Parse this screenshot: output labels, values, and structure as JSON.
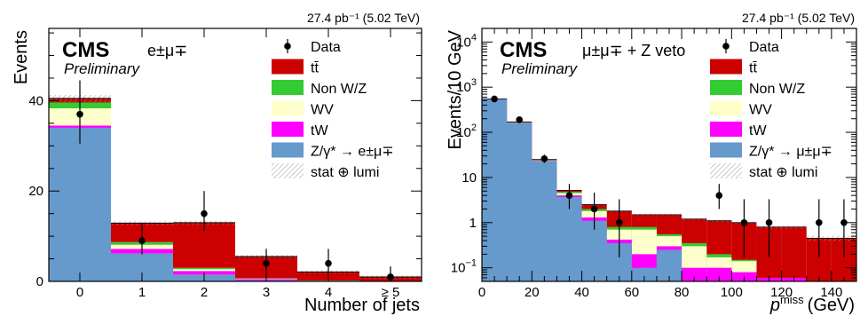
{
  "colors": {
    "ttbar": "#cc0000",
    "nonwz": "#33cc33",
    "wv": "#ffffcc",
    "tw": "#ff00ff",
    "dy": "#6699cc",
    "data": "#000000",
    "unc": "#999999"
  },
  "legend_labels": {
    "data": "Data",
    "ttbar": "tt̄",
    "nonwz": "Non W/Z",
    "wv": "WV",
    "tw": "tW",
    "unc": "stat ⊕ lumi"
  },
  "chart_data": [
    {
      "type": "bar",
      "stacked": true,
      "lumi": "27.4 pb⁻¹ (5.02 TeV)",
      "cms": "CMS",
      "preliminary": "Preliminary",
      "channel": "e±μ∓",
      "xlabel": "Number of jets",
      "ylabel": "Events",
      "categories": [
        "0",
        "1",
        "2",
        "3",
        "4",
        "≥ 5"
      ],
      "ylim": [
        0,
        56
      ],
      "yticks": [
        0,
        20,
        40
      ],
      "legend_dy": "Z/γ* → e±μ∓",
      "stack_order": [
        "dy",
        "tw",
        "wv",
        "nonwz",
        "ttbar"
      ],
      "series": [
        {
          "key": "dy",
          "values": [
            34.0,
            6.2,
            1.5,
            0.2,
            0.0,
            0.0
          ]
        },
        {
          "key": "tw",
          "values": [
            0.5,
            1.0,
            0.8,
            0.3,
            0.1,
            0.05
          ]
        },
        {
          "key": "wv",
          "values": [
            3.8,
            0.9,
            0.4,
            0.1,
            0.05,
            0.02
          ]
        },
        {
          "key": "nonwz",
          "values": [
            1.3,
            0.6,
            0.3,
            0.1,
            0.05,
            0.02
          ]
        },
        {
          "key": "ttbar",
          "values": [
            0.9,
            4.2,
            10.0,
            4.8,
            1.9,
            0.9
          ]
        }
      ],
      "data_points": {
        "values": [
          37,
          9,
          15,
          4,
          4,
          1
        ],
        "err_low": [
          6.5,
          3.0,
          3.9,
          2.0,
          2.0,
          0.9
        ],
        "err_high": [
          7.5,
          4.0,
          5.0,
          3.2,
          3.2,
          2.3
        ]
      }
    },
    {
      "type": "bar",
      "stacked": true,
      "log_y": true,
      "lumi": "27.4 pb⁻¹ (5.02 TeV)",
      "cms": "CMS",
      "preliminary": "Preliminary",
      "channel": "μ±μ∓ + Z veto",
      "xlabel": "p_T^miss (GeV)",
      "xlabel_main": "p",
      "xlabel_sub": "T",
      "xlabel_sup": "miss",
      "xlabel_unit": "(GeV)",
      "ylabel": "Events/10 GeV",
      "xlim": [
        0,
        150
      ],
      "xticks": [
        0,
        20,
        40,
        60,
        80,
        100,
        120,
        140
      ],
      "ylim": [
        0.05,
        20000
      ],
      "yticks": [
        {
          "value": 0.1,
          "base": "10",
          "exp": "−1"
        },
        {
          "value": 1,
          "base": "1",
          "exp": ""
        },
        {
          "value": 10,
          "base": "10",
          "exp": ""
        },
        {
          "value": 100,
          "base": "10",
          "exp": "2"
        },
        {
          "value": 1000,
          "base": "10",
          "exp": "3"
        },
        {
          "value": 10000,
          "base": "10",
          "exp": "4"
        }
      ],
      "legend_dy": "Z/γ* → μ±μ∓",
      "bin_edges": [
        0,
        10,
        20,
        30,
        40,
        50,
        60,
        70,
        80,
        90,
        100,
        110,
        120,
        130,
        140,
        150
      ],
      "totals": [
        550,
        170,
        25,
        5.2,
        2.5,
        1.8,
        1.5,
        1.5,
        1.2,
        1.1,
        1.0,
        0.8,
        0.8,
        0.45,
        0.45
      ],
      "bands": {
        "dy": [
          540,
          160,
          23,
          3.7,
          1.1,
          0.35,
          0.1,
          0.25,
          0.05,
          0.05,
          0.05,
          0.05,
          0.05,
          0.05,
          0.05
        ],
        "tw": [
          541,
          161,
          23.3,
          4.0,
          1.3,
          0.42,
          0.2,
          0.3,
          0.1,
          0.1,
          0.08,
          0.06,
          0.06,
          0.05,
          0.05
        ],
        "wv": [
          543,
          163,
          23.8,
          4.5,
          1.8,
          0.7,
          0.7,
          0.5,
          0.3,
          0.17,
          0.14,
          0.06,
          0.06,
          0.05,
          0.05
        ],
        "nonwz": [
          545,
          165,
          24.2,
          4.8,
          2.0,
          0.8,
          0.8,
          0.55,
          0.35,
          0.2,
          0.15,
          0.06,
          0.06,
          0.05,
          0.05
        ]
      },
      "data_points": {
        "x": [
          5,
          15,
          25,
          35,
          45,
          55,
          95,
          105,
          115,
          135,
          145
        ],
        "values": [
          550,
          190,
          26,
          4,
          2,
          1,
          4,
          1,
          1,
          1,
          1
        ],
        "err_low": [
          23,
          14,
          5,
          2,
          1.3,
          0.83,
          2,
          0.83,
          0.83,
          0.83,
          0.83
        ],
        "err_high": [
          24,
          15,
          6,
          3.2,
          2.6,
          2.3,
          3.2,
          2.3,
          2.3,
          2.3,
          2.3
        ]
      }
    }
  ]
}
